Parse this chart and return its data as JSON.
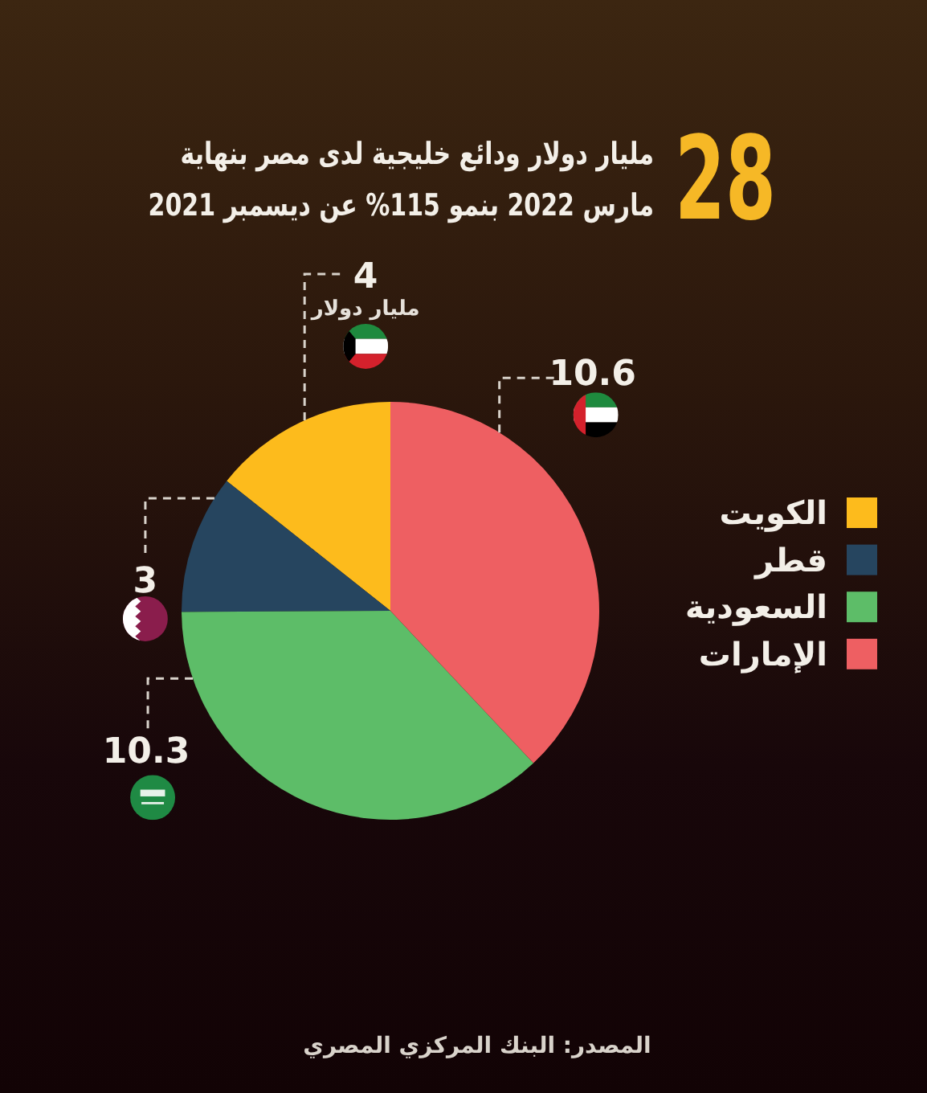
{
  "chart_data": {
    "type": "pie",
    "title": "28",
    "subtitle": "مليار دولار ودائع خليجية لدى مصر بنهاية مارس 2022 بنمو 115% عن ديسمبر 2021",
    "categories": [
      "الكويت",
      "قطر",
      "السعودية",
      "الإمارات"
    ],
    "values": [
      4,
      3,
      10.3,
      10.6
    ],
    "colors": [
      "#fdbb1c",
      "#26455f",
      "#5dbd68",
      "#ee5f62"
    ],
    "data_labels": true,
    "legend": "right",
    "annotations": [
      "مليار دولار",
      "المصدر: البنك المركزي المصري"
    ]
  }
}
